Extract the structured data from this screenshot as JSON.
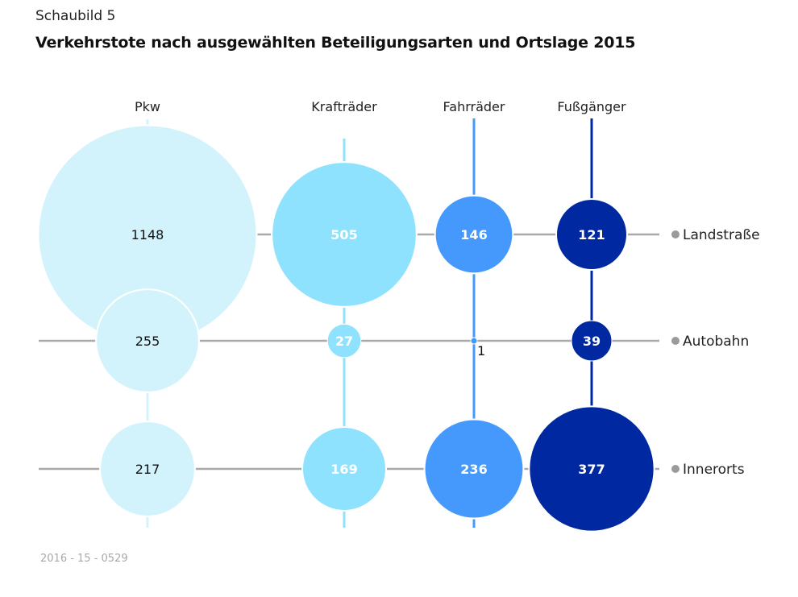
{
  "header": {
    "kicker": "Schaubild 5",
    "title": "Verkehrstote nach ausgewählten Beteiligungsarten und Ortslage 2015"
  },
  "footer": {
    "source_code": "2016 - 15 - 0529"
  },
  "colors": {
    "Pkw": "#d3f3fc",
    "Krafträder": "#8fe2fd",
    "Fahrräder": "#4599fd",
    "Fußgänger": "#0028a0",
    "row_line": "#a9a9a9",
    "row_dot": "#9b9b9b",
    "dark_text": "#111111",
    "light_text": "#ffffff"
  },
  "chart_data": {
    "type": "bubble-matrix",
    "title": "Verkehrstote nach ausgewählten Beteiligungsarten und Ortslage 2015",
    "columns": [
      "Pkw",
      "Krafträder",
      "Fahrräder",
      "Fußgänger"
    ],
    "rows": [
      "Landstraße",
      "Autobahn",
      "Innerorts"
    ],
    "values": {
      "Landstraße": [
        1148,
        505,
        146,
        121
      ],
      "Autobahn": [
        255,
        27,
        1,
        39
      ],
      "Innerorts": [
        217,
        169,
        236,
        377
      ]
    },
    "unit": "Verkehrstote"
  }
}
